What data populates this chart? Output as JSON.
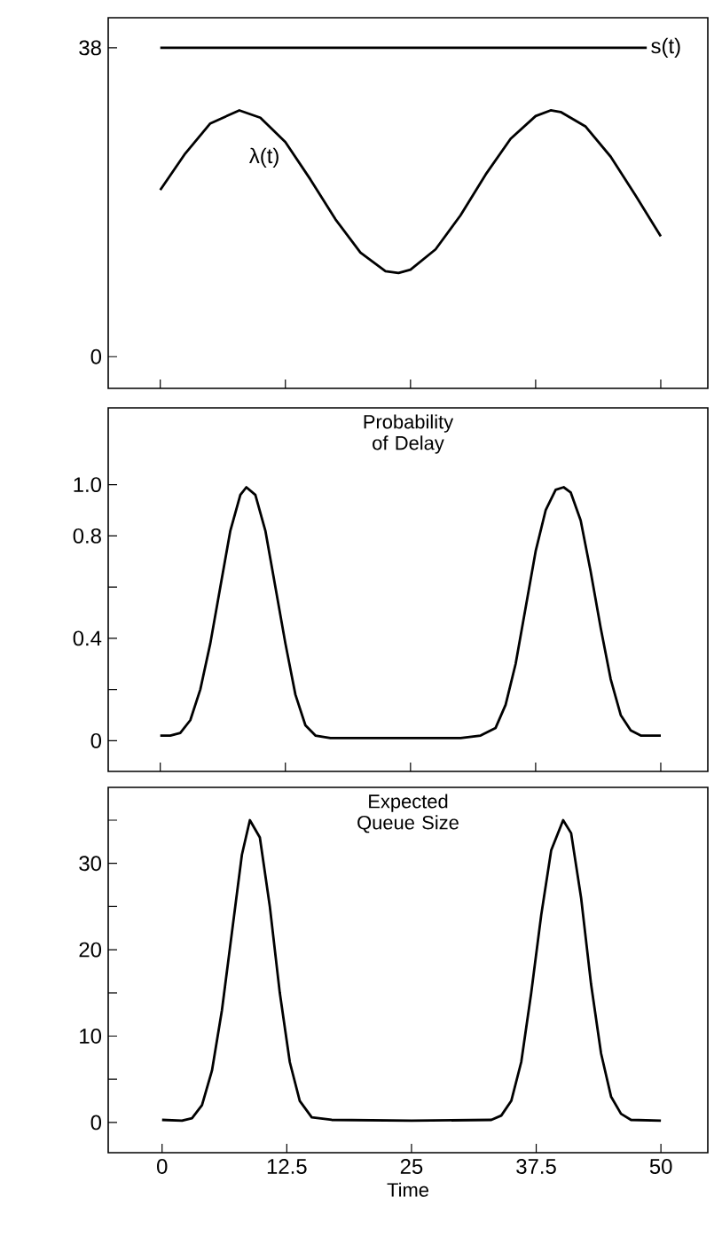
{
  "chart_data": [
    {
      "type": "line",
      "xlim": [
        -5.2,
        54.7
      ],
      "xticks": [
        0,
        12.5,
        25,
        37.5,
        50
      ],
      "ylim": [
        -3.9,
        41.7
      ],
      "yticks": [
        0,
        38
      ],
      "tick_labels": "y",
      "series": [
        {
          "name": "s(t)",
          "color": "#000000",
          "x": [
            0,
            48.6
          ],
          "values": [
            38,
            38
          ]
        },
        {
          "name": "λ(t)",
          "color": "#000000",
          "x": [
            0,
            2.5,
            5,
            7.9,
            10,
            12.5,
            15,
            17.5,
            20,
            22.5,
            23.8,
            25,
            27.5,
            30,
            32.5,
            35,
            37.5,
            39,
            40,
            42.5,
            45,
            47.5,
            50
          ],
          "values": [
            20.5,
            25.0,
            28.7,
            30.3,
            29.4,
            26.4,
            21.8,
            16.9,
            12.8,
            10.5,
            10.3,
            10.7,
            13.2,
            17.4,
            22.4,
            26.8,
            29.6,
            30.3,
            30.1,
            28.3,
            24.6,
            19.8,
            14.8
          ]
        }
      ]
    },
    {
      "type": "line",
      "title": "Probability of Delay",
      "xlim": [
        -5.2,
        54.7
      ],
      "xticks": [
        0,
        12.5,
        25,
        37.5,
        50
      ],
      "ylim": [
        -0.12,
        1.3
      ],
      "yticks": [
        0,
        {
          "value": 0.2,
          "label": null
        },
        0.4,
        {
          "value": 0.6,
          "label": null
        },
        0.8,
        {
          "value": 1,
          "label": "1.0"
        }
      ],
      "tick_labels": "y",
      "series": [
        {
          "color": "#000000",
          "x": [
            0,
            1,
            2,
            3,
            4,
            5,
            6,
            7,
            8,
            8.6,
            9.5,
            10.5,
            11.5,
            12.5,
            13.5,
            14.5,
            15.5,
            17,
            20,
            25,
            30,
            32,
            33.5,
            34.5,
            35.5,
            36.5,
            37.5,
            38.5,
            39.5,
            40.3,
            41,
            42,
            43,
            44,
            45,
            46,
            47,
            48,
            50
          ],
          "values": [
            0.02,
            0.02,
            0.03,
            0.08,
            0.2,
            0.38,
            0.6,
            0.82,
            0.96,
            0.99,
            0.96,
            0.82,
            0.6,
            0.38,
            0.18,
            0.06,
            0.02,
            0.01,
            0.01,
            0.01,
            0.01,
            0.02,
            0.05,
            0.14,
            0.3,
            0.52,
            0.74,
            0.9,
            0.98,
            0.99,
            0.97,
            0.86,
            0.66,
            0.44,
            0.24,
            0.1,
            0.04,
            0.02,
            0.02
          ]
        }
      ]
    },
    {
      "type": "line",
      "title": "Expected Queue Size",
      "xlabel": "Time",
      "xlim": [
        -5.4,
        54.7
      ],
      "xticks": [
        0,
        12.5,
        25,
        37.5,
        50
      ],
      "ylim": [
        -3.5,
        38.8
      ],
      "yticks": [
        0,
        {
          "value": 5,
          "label": null
        },
        10,
        {
          "value": 15,
          "label": null
        },
        20,
        {
          "value": 25,
          "label": null
        },
        30,
        {
          "value": 35,
          "label": null
        }
      ],
      "series": [
        {
          "color": "#000000",
          "x": [
            0,
            2,
            3,
            4,
            5,
            6,
            7,
            8,
            8.8,
            9.8,
            10.8,
            11.8,
            12.8,
            13.8,
            15,
            17,
            25,
            33,
            34,
            35,
            36,
            37,
            38,
            39,
            40.2,
            41,
            42,
            43,
            44,
            45,
            46,
            47,
            50
          ],
          "values": [
            0.3,
            0.2,
            0.5,
            2,
            6,
            13,
            22,
            31,
            35,
            33,
            25,
            15,
            7,
            2.5,
            0.6,
            0.3,
            0.2,
            0.3,
            0.8,
            2.5,
            7,
            15,
            24,
            31.5,
            35,
            33.5,
            26,
            16,
            8,
            3,
            1,
            0.3,
            0.2
          ]
        }
      ]
    }
  ]
}
